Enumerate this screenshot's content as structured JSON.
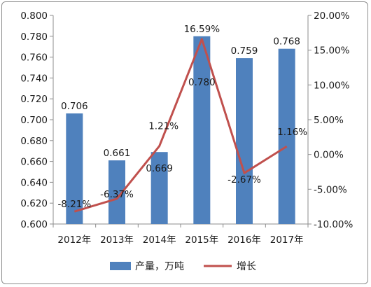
{
  "chart_data": {
    "type": "bar",
    "categories": [
      "2012年",
      "2013年",
      "2014年",
      "2015年",
      "2016年",
      "2017年"
    ],
    "series": [
      {
        "name": "产量，万吨",
        "type": "bar",
        "axis": "left",
        "values": [
          0.706,
          0.661,
          0.669,
          0.78,
          0.759,
          0.768
        ],
        "labels": [
          "0.706",
          "0.661",
          "0.669",
          "0.780",
          "0.759",
          "0.768"
        ],
        "color": "#4f81bd"
      },
      {
        "name": "增长",
        "type": "line",
        "axis": "right",
        "values": [
          -8.21,
          -6.37,
          1.21,
          16.59,
          -2.67,
          1.16
        ],
        "labels": [
          "-8.21%",
          "-6.37%",
          "1.21%",
          "16.59%",
          "-2.67%",
          "1.16%"
        ],
        "color": "#c0504d"
      }
    ],
    "y_left": {
      "min": 0.6,
      "max": 0.8,
      "ticks": [
        "0.600",
        "0.620",
        "0.640",
        "0.660",
        "0.680",
        "0.700",
        "0.720",
        "0.740",
        "0.760",
        "0.780",
        "0.800"
      ]
    },
    "y_right": {
      "min": -10,
      "max": 20,
      "ticks": [
        "-10.00%",
        "-5.00%",
        "0.00%",
        "5.00%",
        "10.00%",
        "15.00%",
        "20.00%"
      ]
    },
    "grid": false,
    "legend_position": "bottom"
  }
}
